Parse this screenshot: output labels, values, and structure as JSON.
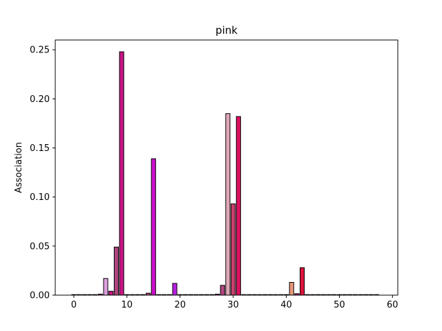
{
  "chart_data": {
    "type": "bar",
    "title": "pink",
    "xlabel": "",
    "ylabel": "Association",
    "xlim": [
      -3.5,
      61
    ],
    "ylim": [
      0,
      0.26
    ],
    "xticks": [
      "0",
      "10",
      "20",
      "30",
      "40",
      "50",
      "60"
    ],
    "yticks": [
      "0.00",
      "0.05",
      "0.10",
      "0.15",
      "0.20",
      "0.25"
    ],
    "grid": false,
    "bars": [
      {
        "x": 0,
        "value": 0,
        "color": "#ffc0cb"
      },
      {
        "x": 1,
        "value": 0,
        "color": "#ffc0cb"
      },
      {
        "x": 2,
        "value": 0,
        "color": "#ffc0cb"
      },
      {
        "x": 3,
        "value": 0,
        "color": "#ffc0cb"
      },
      {
        "x": 4,
        "value": 0,
        "color": "#ffc0cb"
      },
      {
        "x": 5,
        "value": 0.001,
        "color": "#c71585"
      },
      {
        "x": 6,
        "value": 0.017,
        "color": "#dda0dd"
      },
      {
        "x": 7,
        "value": 0.004,
        "color": "#c71585"
      },
      {
        "x": 8,
        "value": 0.049,
        "color": "#b0457f"
      },
      {
        "x": 9,
        "value": 0.248,
        "color": "#c71585"
      },
      {
        "x": 10,
        "value": 0,
        "color": "#ffc0cb"
      },
      {
        "x": 11,
        "value": 0,
        "color": "#ffc0cb"
      },
      {
        "x": 12,
        "value": 0,
        "color": "#ffc0cb"
      },
      {
        "x": 13,
        "value": 0.0005,
        "color": "#db7093"
      },
      {
        "x": 14,
        "value": 0.002,
        "color": "#b0457f"
      },
      {
        "x": 15,
        "value": 0.139,
        "color": "#cc10cc"
      },
      {
        "x": 16,
        "value": 0,
        "color": "#ffc0cb"
      },
      {
        "x": 17,
        "value": 0,
        "color": "#ffc0cb"
      },
      {
        "x": 18,
        "value": 0.0005,
        "color": "#c71585"
      },
      {
        "x": 19,
        "value": 0.012,
        "color": "#b620e0"
      },
      {
        "x": 20,
        "value": 0,
        "color": "#ffc0cb"
      },
      {
        "x": 21,
        "value": 0,
        "color": "#ffc0cb"
      },
      {
        "x": 22,
        "value": 0,
        "color": "#ffc0cb"
      },
      {
        "x": 23,
        "value": 0,
        "color": "#ffc0cb"
      },
      {
        "x": 24,
        "value": 0,
        "color": "#ffc0cb"
      },
      {
        "x": 25,
        "value": 0,
        "color": "#ffc0cb"
      },
      {
        "x": 26,
        "value": 0,
        "color": "#ffc0cb"
      },
      {
        "x": 27,
        "value": 0.001,
        "color": "#c71585"
      },
      {
        "x": 28,
        "value": 0.01,
        "color": "#b0457f"
      },
      {
        "x": 29,
        "value": 0.185,
        "color": "#e0a8b8"
      },
      {
        "x": 30,
        "value": 0.093,
        "color": "#c8406f"
      },
      {
        "x": 31,
        "value": 0.182,
        "color": "#dc1060"
      },
      {
        "x": 32,
        "value": 0,
        "color": "#ffc0cb"
      },
      {
        "x": 33,
        "value": 0,
        "color": "#ffc0cb"
      },
      {
        "x": 34,
        "value": 0,
        "color": "#ffc0cb"
      },
      {
        "x": 35,
        "value": 0,
        "color": "#ffc0cb"
      },
      {
        "x": 36,
        "value": 0,
        "color": "#ffc0cb"
      },
      {
        "x": 37,
        "value": 0,
        "color": "#ffc0cb"
      },
      {
        "x": 38,
        "value": 0,
        "color": "#ffc0cb"
      },
      {
        "x": 39,
        "value": 0,
        "color": "#ffc0cb"
      },
      {
        "x": 40,
        "value": 0,
        "color": "#ffc0cb"
      },
      {
        "x": 41,
        "value": 0.013,
        "color": "#e9967a"
      },
      {
        "x": 42,
        "value": 0.0015,
        "color": "#c71585"
      },
      {
        "x": 43,
        "value": 0.028,
        "color": "#dc143c"
      },
      {
        "x": 44,
        "value": 0,
        "color": "#ffc0cb"
      },
      {
        "x": 45,
        "value": 0,
        "color": "#ffc0cb"
      },
      {
        "x": 46,
        "value": 0,
        "color": "#ffc0cb"
      },
      {
        "x": 47,
        "value": 0,
        "color": "#ffc0cb"
      },
      {
        "x": 48,
        "value": 0,
        "color": "#ffc0cb"
      },
      {
        "x": 49,
        "value": 0,
        "color": "#ffc0cb"
      },
      {
        "x": 50,
        "value": 0,
        "color": "#ffc0cb"
      },
      {
        "x": 51,
        "value": 0,
        "color": "#ffc0cb"
      },
      {
        "x": 52,
        "value": 0,
        "color": "#ffc0cb"
      },
      {
        "x": 53,
        "value": 0,
        "color": "#ffc0cb"
      },
      {
        "x": 54,
        "value": 0,
        "color": "#ffc0cb"
      },
      {
        "x": 55,
        "value": 0,
        "color": "#ffc0cb"
      },
      {
        "x": 56,
        "value": 0,
        "color": "#ffc0cb"
      },
      {
        "x": 57,
        "value": 0,
        "color": "#ffc0cb"
      }
    ]
  }
}
